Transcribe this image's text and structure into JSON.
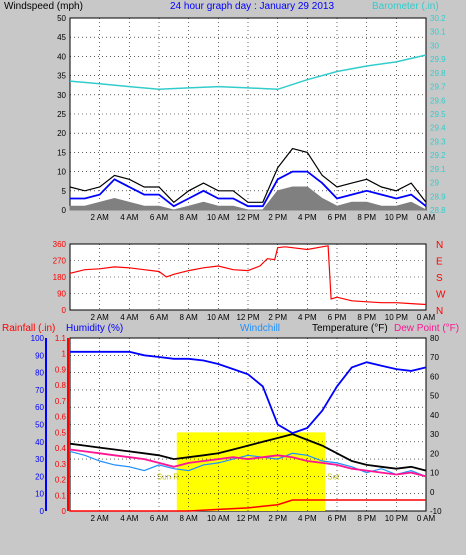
{
  "header": {
    "left_label": "Windspeed (mph)",
    "title": "24 hour graph day : January 29 2013",
    "right_label": "Barometer (.in)"
  },
  "colors": {
    "frame": "#c8c8c8",
    "plot_bg": "#ffffff",
    "grid": "#000000",
    "wind": "#000000",
    "wind_avg": "#0000ff",
    "wind_gust_fill": "#808080",
    "barometer": "#33cccc",
    "wind_dir": "#ff0000",
    "humidity": "#0000ff",
    "temperature": "#000000",
    "dewpoint": "#ff1493",
    "windchill": "#1e90ff",
    "rain": "#ff0000",
    "sun": "#ffff00"
  },
  "x_ticks": [
    "2 AM",
    "4 AM",
    "6 AM",
    "8 AM",
    "10 AM",
    "12 PM",
    "2 PM",
    "4 PM",
    "6 PM",
    "8 PM",
    "10 PM",
    "0 AM"
  ],
  "chart_data": [
    {
      "type": "line",
      "name": "wind-barometer",
      "x_unit": "hours",
      "xlim": [
        0,
        24
      ],
      "ylim_left": [
        0,
        50
      ],
      "y_ticks_left": [
        "0",
        "5",
        "10",
        "15",
        "20",
        "25",
        "30",
        "35",
        "40",
        "45",
        "50"
      ],
      "ylim_right": [
        28.8,
        30.2
      ],
      "y_ticks_right": [
        "28.8",
        "28.9",
        "29",
        "29.1",
        "29.2",
        "29.3",
        "29.4",
        "29.5",
        "29.6",
        "29.7",
        "29.8",
        "29.9",
        "30",
        "30.1",
        "30.2"
      ],
      "series": [
        {
          "key": "barometer",
          "axis": "right",
          "x": [
            0,
            2,
            4,
            6,
            8,
            10,
            12,
            14,
            16,
            18,
            20,
            22,
            24
          ],
          "values": [
            29.74,
            29.72,
            29.7,
            29.68,
            29.69,
            29.7,
            29.69,
            29.68,
            29.75,
            29.81,
            29.85,
            29.88,
            29.93
          ]
        },
        {
          "key": "wind_speed",
          "axis": "left",
          "x": [
            0,
            1,
            2,
            3,
            4,
            5,
            6,
            7,
            8,
            9,
            10,
            11,
            12,
            13,
            14,
            15,
            16,
            17,
            18,
            19,
            20,
            21,
            22,
            23,
            24
          ],
          "values": [
            6,
            5,
            6,
            9,
            8,
            6,
            6,
            2,
            5,
            7,
            5,
            5,
            2,
            2,
            11,
            16,
            15,
            9,
            6,
            7,
            8,
            6,
            5,
            7,
            2
          ]
        },
        {
          "key": "wind_avg",
          "axis": "left",
          "x": [
            0,
            1,
            2,
            3,
            4,
            5,
            6,
            7,
            8,
            9,
            10,
            11,
            12,
            13,
            14,
            15,
            16,
            17,
            18,
            19,
            20,
            21,
            22,
            23,
            24
          ],
          "values": [
            3,
            3,
            4,
            8,
            6,
            4,
            4,
            1,
            3,
            5,
            3,
            3,
            1,
            1,
            8,
            10,
            10,
            7,
            3,
            4,
            5,
            4,
            3,
            4,
            1
          ]
        },
        {
          "key": "wind_gust",
          "axis": "left",
          "x": [
            0,
            1,
            2,
            3,
            4,
            5,
            6,
            7,
            8,
            9,
            10,
            11,
            12,
            13,
            14,
            15,
            16,
            17,
            18,
            19,
            20,
            21,
            22,
            23,
            24
          ],
          "values": [
            1,
            1,
            2,
            3,
            2,
            1,
            1,
            0,
            1,
            2,
            1,
            1,
            0,
            0,
            5,
            6,
            6,
            3,
            1,
            2,
            2,
            1,
            1,
            2,
            0
          ]
        }
      ]
    },
    {
      "type": "line",
      "name": "wind-direction",
      "x_unit": "hours",
      "xlim": [
        0,
        24
      ],
      "ylim": [
        0,
        360
      ],
      "y_ticks": [
        "0",
        "90",
        "180",
        "270",
        "360"
      ],
      "right_labels": [
        "N",
        "W",
        "S",
        "E",
        "N"
      ],
      "series": [
        {
          "key": "wind_dir",
          "x": [
            0,
            1,
            2,
            3,
            4,
            5,
            6,
            6.5,
            7,
            8,
            9,
            10,
            11,
            12,
            12.8,
            13.3,
            13.8,
            14,
            14.5,
            15,
            16,
            17,
            17.4,
            17.6,
            18,
            19,
            20,
            21,
            22,
            23,
            24
          ],
          "values": [
            200,
            220,
            225,
            235,
            230,
            220,
            210,
            180,
            195,
            215,
            230,
            240,
            220,
            215,
            240,
            280,
            275,
            340,
            345,
            340,
            330,
            345,
            350,
            60,
            70,
            50,
            45,
            40,
            40,
            35,
            30
          ]
        }
      ]
    },
    {
      "type": "line",
      "name": "temperature-humidity-rain",
      "x_unit": "hours",
      "xlim": [
        0,
        24
      ],
      "labels": {
        "rain": "Rainfall (.in)",
        "humidity": "Humidity (%)",
        "windchill": "Windchill",
        "temperature": "Temperature (°F)",
        "dewpoint": "Dew Point (°F)"
      },
      "ylim_humidity": [
        0,
        100
      ],
      "y_ticks_humidity": [
        "0",
        "10",
        "20",
        "30",
        "40",
        "50",
        "60",
        "70",
        "80",
        "90",
        "100"
      ],
      "ylim_rain": [
        0,
        1.1
      ],
      "y_ticks_rain": [
        "0",
        "0.1",
        "0.2",
        "0.3",
        "0.4",
        "0.5",
        "0.6",
        "0.7",
        "0.8",
        "0.9",
        "1",
        "1.1"
      ],
      "ylim_temp": [
        -10,
        80
      ],
      "y_ticks_temp": [
        "-10",
        "0",
        "10",
        "20",
        "30",
        "40",
        "50",
        "60",
        "70",
        "80"
      ],
      "sun_labels": {
        "rise": "Sun R",
        "set": "Set"
      },
      "series": [
        {
          "key": "humidity",
          "axis": "humidity",
          "x": [
            0,
            1,
            2,
            3,
            4,
            5,
            6,
            7,
            8,
            9,
            10,
            11,
            12,
            13,
            14,
            15,
            16,
            17,
            18,
            19,
            20,
            21,
            22,
            23,
            24
          ],
          "values": [
            92,
            92,
            92,
            92,
            92,
            90,
            89,
            88,
            88,
            87,
            85,
            82,
            79,
            72,
            50,
            45,
            48,
            58,
            72,
            83,
            86,
            84,
            82,
            81,
            83
          ]
        },
        {
          "key": "temperature",
          "axis": "temp",
          "x": [
            0,
            1,
            2,
            3,
            4,
            5,
            6,
            7,
            8,
            9,
            10,
            11,
            12,
            13,
            14,
            15,
            16,
            17,
            18,
            19,
            20,
            21,
            22,
            23,
            24
          ],
          "values": [
            25,
            24,
            23,
            22,
            21,
            20,
            19,
            17,
            18,
            19,
            20,
            22,
            24,
            26,
            28,
            30,
            27,
            24,
            20,
            16,
            14,
            13,
            12,
            13,
            11
          ]
        },
        {
          "key": "dewpoint",
          "axis": "temp",
          "x": [
            0,
            1,
            2,
            3,
            4,
            5,
            6,
            7,
            8,
            9,
            10,
            11,
            12,
            13,
            14,
            15,
            16,
            17,
            18,
            19,
            20,
            21,
            22,
            23,
            24
          ],
          "values": [
            22,
            21,
            20,
            19,
            18,
            17,
            15,
            13,
            15,
            16,
            17,
            18,
            17,
            18,
            19,
            18,
            16,
            15,
            14,
            12,
            11,
            10,
            9,
            10,
            8
          ]
        },
        {
          "key": "windchill",
          "axis": "temp",
          "x": [
            0,
            1,
            2,
            3,
            4,
            5,
            6,
            7,
            8,
            9,
            10,
            11,
            12,
            13,
            14,
            15,
            16,
            17,
            18,
            19,
            20,
            21,
            22,
            23,
            24
          ],
          "values": [
            21,
            19,
            16,
            14,
            13,
            11,
            14,
            12,
            11,
            14,
            15,
            17,
            19,
            18,
            17,
            20,
            19,
            16,
            15,
            13,
            10,
            12,
            9,
            11,
            8
          ]
        },
        {
          "key": "rain",
          "axis": "rain",
          "x": [
            0,
            6,
            8,
            10,
            12,
            13,
            14,
            15,
            16,
            17,
            18,
            19,
            20,
            21,
            22,
            23,
            24
          ],
          "values": [
            0.0,
            0.0,
            0.0,
            0.01,
            0.02,
            0.03,
            0.04,
            0.07,
            0.07,
            0.07,
            0.07,
            0.07,
            0.07,
            0.07,
            0.07,
            0.07,
            0.07
          ]
        }
      ],
      "sun": {
        "rise_hour": 7.2,
        "set_hour": 17.2
      }
    }
  ]
}
